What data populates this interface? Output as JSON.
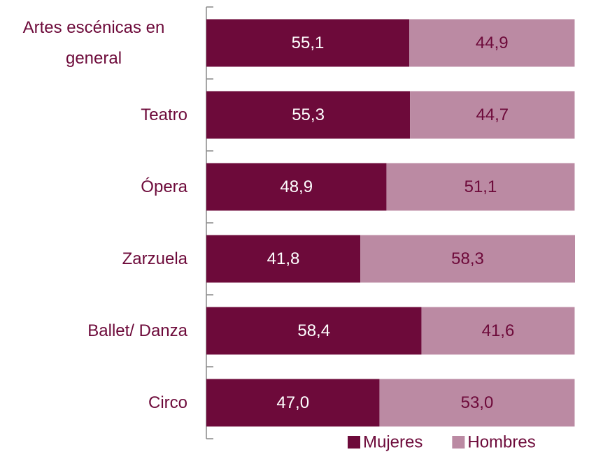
{
  "chart_data": {
    "type": "stacked-bar-horizontal",
    "categories": [
      "Artes escénicas en general",
      "Teatro",
      "Ópera",
      "Zarzuela",
      "Ballet/ Danza",
      "Circo"
    ],
    "series": [
      {
        "name": "Mujeres",
        "color": "#6d0a3a",
        "values": [
          55.1,
          55.3,
          48.9,
          41.8,
          58.4,
          47.0
        ],
        "value_labels": [
          "55,1",
          "55,3",
          "48,9",
          "41,8",
          "58,4",
          "47,0"
        ]
      },
      {
        "name": "Hombres",
        "color": "#bb8aa3",
        "values": [
          44.9,
          44.7,
          51.1,
          58.3,
          41.6,
          53.0
        ],
        "value_labels": [
          "44,9",
          "44,7",
          "51,1",
          "58,3",
          "41,6",
          "53,0"
        ]
      }
    ],
    "legend": "bottom-right"
  }
}
